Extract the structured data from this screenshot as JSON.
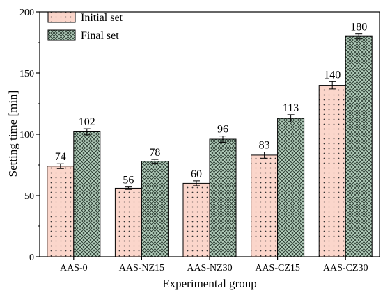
{
  "chart_data": {
    "type": "bar",
    "xlabel": "Experimental group",
    "ylabel": "Setting time [min]",
    "ylim": [
      0,
      200
    ],
    "yticks": [
      0,
      50,
      100,
      150,
      200
    ],
    "categories": [
      "AAS-0",
      "AAS-NZ15",
      "AAS-NZ30",
      "AAS-CZ15",
      "AAS-CZ30"
    ],
    "series": [
      {
        "name": "Initial set",
        "values": [
          74,
          56,
          60,
          83,
          140
        ],
        "errors": [
          2,
          1,
          2,
          2.5,
          3
        ],
        "labels": [
          "74",
          "56",
          "60",
          "83",
          "140"
        ],
        "color": "#fbd6cb",
        "pattern": "dots"
      },
      {
        "name": "Final set",
        "values": [
          102,
          78,
          96,
          113,
          180
        ],
        "errors": [
          2.5,
          1.5,
          2.5,
          3,
          2
        ],
        "labels": [
          "102",
          "78",
          "96",
          "113",
          "180"
        ],
        "color": "#b5d0be",
        "pattern": "crosshatch"
      }
    ],
    "legend_position": "top-left",
    "grid": false
  }
}
